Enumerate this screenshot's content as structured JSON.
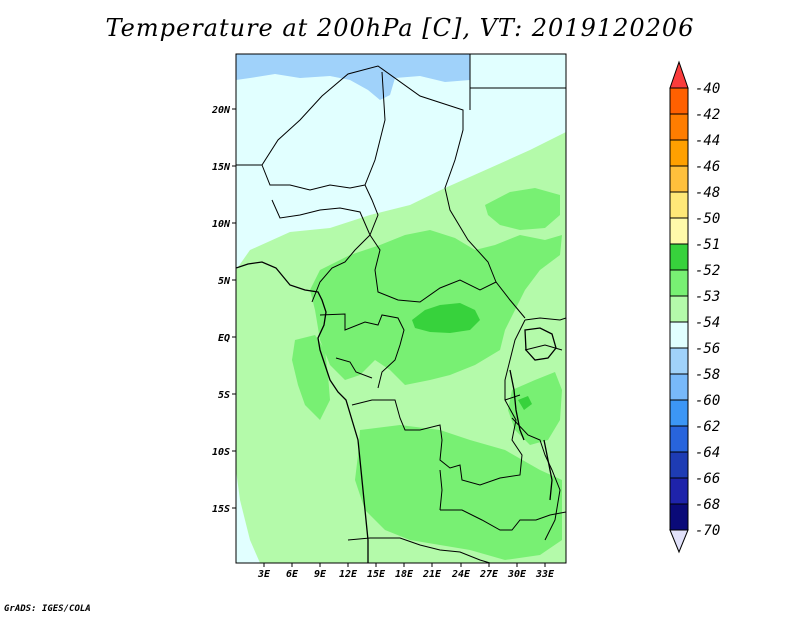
{
  "title": "Temperature at 200hPa [C], VT: 2019120206",
  "credit": "GrADS: IGES/COLA",
  "map": {
    "lat_labels": [
      "20N",
      "15N",
      "10N",
      "5N",
      "EQ",
      "5S",
      "10S",
      "15S"
    ],
    "lon_labels": [
      "3E",
      "6E",
      "9E",
      "12E",
      "15E",
      "18E",
      "21E",
      "24E",
      "27E",
      "30E",
      "33E"
    ],
    "region_colors": {
      "c_m56": "#a0d2fa",
      "c_m54": "#e1ffff",
      "c_m53": "#b4faaa",
      "c_m52": "#78f073",
      "c_m51": "#37d23c"
    }
  },
  "colorbar": {
    "labels": [
      "-40",
      "-42",
      "-44",
      "-46",
      "-48",
      "-50",
      "-51",
      "-52",
      "-53",
      "-54",
      "-56",
      "-58",
      "-60",
      "-62",
      "-64",
      "-66",
      "-68",
      "-70"
    ],
    "colors": [
      "#fa3c3c",
      "#ff6000",
      "#ff7d00",
      "#ffa000",
      "#ffc03c",
      "#ffe878",
      "#fffaaa",
      "#37d23c",
      "#78f073",
      "#b4faaa",
      "#e1ffff",
      "#a0d2fa",
      "#78b9fa",
      "#3c96f5",
      "#2864dc",
      "#1e3cb4",
      "#1e23aa",
      "#0a0a78",
      "#e1e1fa"
    ]
  }
}
